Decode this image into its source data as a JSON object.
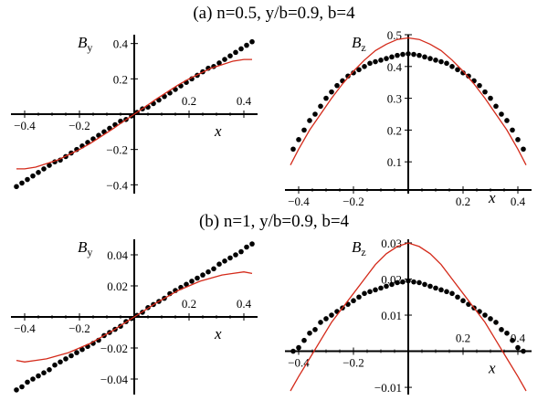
{
  "colors": {
    "model_line": "#d42a1a",
    "data_points": "#000000",
    "axis": "#000000"
  },
  "titles": [
    "(a)  n=0.5,  y/b=0.9,  b=4",
    "(b)  n=1,  y/b=0.9,  b=4"
  ],
  "chart_data": [
    {
      "type": "scatter",
      "panel": "a-left",
      "xlabel": "x",
      "ylabel": "B",
      "ylabel_sub": "y",
      "xlim": [
        -0.45,
        0.45
      ],
      "ylim": [
        -0.45,
        0.45
      ],
      "xticks": [
        -0.4,
        -0.2,
        0.2,
        0.4
      ],
      "xtick_labels": [
        "−0.4",
        "−0.2",
        "0.2",
        "0.4"
      ],
      "yticks": [
        -0.4,
        -0.2,
        0.2,
        0.4
      ],
      "ytick_labels": [
        "−0.4",
        "−0.2",
        "0.2",
        "0.4"
      ],
      "series": [
        {
          "kind": "points",
          "x": [
            -0.43,
            -0.41,
            -0.39,
            -0.37,
            -0.35,
            -0.33,
            -0.31,
            -0.29,
            -0.27,
            -0.25,
            -0.23,
            -0.21,
            -0.19,
            -0.17,
            -0.15,
            -0.13,
            -0.11,
            -0.09,
            -0.07,
            -0.05,
            -0.03,
            -0.01,
            0.01,
            0.03,
            0.05,
            0.07,
            0.09,
            0.11,
            0.13,
            0.15,
            0.17,
            0.19,
            0.21,
            0.23,
            0.25,
            0.27,
            0.29,
            0.31,
            0.33,
            0.35,
            0.37,
            0.39,
            0.41,
            0.43
          ],
          "y": [
            -0.41,
            -0.39,
            -0.37,
            -0.35,
            -0.33,
            -0.31,
            -0.29,
            -0.27,
            -0.26,
            -0.24,
            -0.22,
            -0.2,
            -0.18,
            -0.16,
            -0.14,
            -0.12,
            -0.1,
            -0.08,
            -0.06,
            -0.04,
            -0.03,
            -0.01,
            0.01,
            0.03,
            0.04,
            0.06,
            0.08,
            0.1,
            0.12,
            0.14,
            0.16,
            0.18,
            0.2,
            0.22,
            0.24,
            0.26,
            0.27,
            0.29,
            0.31,
            0.33,
            0.35,
            0.37,
            0.39,
            0.41
          ]
        },
        {
          "kind": "line",
          "x": [
            -0.43,
            -0.4,
            -0.36,
            -0.32,
            -0.28,
            -0.24,
            -0.2,
            -0.16,
            -0.12,
            -0.08,
            -0.04,
            0,
            0.04,
            0.08,
            0.12,
            0.16,
            0.2,
            0.24,
            0.28,
            0.32,
            0.36,
            0.4,
            0.43
          ],
          "y": [
            -0.31,
            -0.31,
            -0.3,
            -0.28,
            -0.26,
            -0.23,
            -0.2,
            -0.165,
            -0.125,
            -0.085,
            -0.042,
            0,
            0.042,
            0.085,
            0.125,
            0.165,
            0.2,
            0.23,
            0.26,
            0.28,
            0.3,
            0.31,
            0.31
          ]
        }
      ]
    },
    {
      "type": "scatter",
      "panel": "a-right",
      "xlabel": "x",
      "ylabel": "B",
      "ylabel_sub": "z",
      "xlim": [
        -0.45,
        0.45
      ],
      "ylim": [
        0.0,
        0.5
      ],
      "xticks": [
        -0.4,
        -0.2,
        0.2,
        0.4
      ],
      "xtick_labels": [
        "−0.4",
        "−0.2",
        "0.2",
        "0.4"
      ],
      "yticks": [
        0.1,
        0.2,
        0.3,
        0.4,
        0.5
      ],
      "ytick_labels": [
        "0.1",
        "0.2",
        "0.3",
        "0.4",
        "0.5"
      ],
      "series": [
        {
          "kind": "points",
          "x": [
            -0.42,
            -0.4,
            -0.38,
            -0.36,
            -0.34,
            -0.32,
            -0.3,
            -0.28,
            -0.26,
            -0.24,
            -0.22,
            -0.2,
            -0.18,
            -0.16,
            -0.14,
            -0.12,
            -0.1,
            -0.08,
            -0.06,
            -0.04,
            -0.02,
            0,
            0.02,
            0.04,
            0.06,
            0.08,
            0.1,
            0.12,
            0.14,
            0.16,
            0.18,
            0.2,
            0.22,
            0.24,
            0.26,
            0.28,
            0.3,
            0.32,
            0.34,
            0.36,
            0.38,
            0.4,
            0.42
          ],
          "y": [
            0.14,
            0.17,
            0.2,
            0.23,
            0.25,
            0.275,
            0.3,
            0.32,
            0.34,
            0.355,
            0.37,
            0.38,
            0.39,
            0.4,
            0.41,
            0.415,
            0.42,
            0.425,
            0.43,
            0.435,
            0.438,
            0.44,
            0.438,
            0.435,
            0.43,
            0.425,
            0.42,
            0.415,
            0.41,
            0.4,
            0.39,
            0.38,
            0.37,
            0.355,
            0.34,
            0.32,
            0.3,
            0.275,
            0.25,
            0.23,
            0.2,
            0.17,
            0.14
          ]
        },
        {
          "kind": "line",
          "x": [
            -0.43,
            -0.4,
            -0.36,
            -0.32,
            -0.28,
            -0.24,
            -0.2,
            -0.16,
            -0.12,
            -0.08,
            -0.04,
            0,
            0.04,
            0.08,
            0.12,
            0.16,
            0.2,
            0.24,
            0.28,
            0.32,
            0.36,
            0.4,
            0.43
          ],
          "y": [
            0.09,
            0.14,
            0.2,
            0.25,
            0.3,
            0.345,
            0.385,
            0.42,
            0.45,
            0.47,
            0.485,
            0.49,
            0.485,
            0.47,
            0.45,
            0.42,
            0.385,
            0.345,
            0.3,
            0.25,
            0.2,
            0.14,
            0.09
          ]
        }
      ]
    },
    {
      "type": "scatter",
      "panel": "b-left",
      "xlabel": "x",
      "ylabel": "B",
      "ylabel_sub": "y",
      "xlim": [
        -0.45,
        0.45
      ],
      "ylim": [
        -0.05,
        0.05
      ],
      "xticks": [
        -0.4,
        -0.2,
        0.2,
        0.4
      ],
      "xtick_labels": [
        "−0.4",
        "−0.2",
        "0.2",
        "0.4"
      ],
      "yticks": [
        -0.04,
        -0.02,
        0.02,
        0.04
      ],
      "ytick_labels": [
        "−0.04",
        "−0.02",
        "0.02",
        "0.04"
      ],
      "series": [
        {
          "kind": "points",
          "x": [
            -0.43,
            -0.41,
            -0.39,
            -0.37,
            -0.35,
            -0.33,
            -0.31,
            -0.29,
            -0.27,
            -0.25,
            -0.23,
            -0.21,
            -0.19,
            -0.17,
            -0.15,
            -0.13,
            -0.11,
            -0.09,
            -0.07,
            -0.05,
            -0.03,
            -0.01,
            0.01,
            0.03,
            0.05,
            0.07,
            0.09,
            0.11,
            0.13,
            0.15,
            0.17,
            0.19,
            0.21,
            0.23,
            0.25,
            0.27,
            0.29,
            0.31,
            0.33,
            0.35,
            0.37,
            0.39,
            0.41,
            0.43
          ],
          "y": [
            -0.047,
            -0.045,
            -0.042,
            -0.04,
            -0.038,
            -0.036,
            -0.034,
            -0.031,
            -0.029,
            -0.027,
            -0.025,
            -0.023,
            -0.021,
            -0.019,
            -0.017,
            -0.015,
            -0.012,
            -0.01,
            -0.008,
            -0.006,
            -0.003,
            -0.001,
            0.001,
            0.003,
            0.006,
            0.008,
            0.01,
            0.012,
            0.015,
            0.017,
            0.019,
            0.021,
            0.023,
            0.025,
            0.027,
            0.029,
            0.031,
            0.034,
            0.036,
            0.038,
            0.04,
            0.042,
            0.045,
            0.047
          ]
        },
        {
          "kind": "line",
          "x": [
            -0.43,
            -0.4,
            -0.36,
            -0.32,
            -0.28,
            -0.24,
            -0.2,
            -0.16,
            -0.12,
            -0.08,
            -0.04,
            0,
            0.04,
            0.08,
            0.12,
            0.16,
            0.2,
            0.24,
            0.28,
            0.32,
            0.36,
            0.4,
            0.43
          ],
          "y": [
            -0.028,
            -0.029,
            -0.028,
            -0.027,
            -0.025,
            -0.023,
            -0.02,
            -0.017,
            -0.013,
            -0.009,
            -0.0045,
            0,
            0.0045,
            0.009,
            0.013,
            0.017,
            0.02,
            0.023,
            0.025,
            0.027,
            0.028,
            0.029,
            0.028
          ]
        }
      ]
    },
    {
      "type": "scatter",
      "panel": "b-right",
      "xlabel": "x",
      "ylabel": "B",
      "ylabel_sub": "z",
      "xlim": [
        -0.45,
        0.45
      ],
      "ylim": [
        -0.012,
        0.031
      ],
      "xticks": [
        -0.4,
        -0.2,
        0.2,
        0.4
      ],
      "xtick_labels": [
        "−0.4",
        "−0.2",
        "0.2",
        "0.4"
      ],
      "yticks": [
        -0.01,
        0.01,
        0.02,
        0.03
      ],
      "ytick_labels": [
        "−0.01",
        "0.01",
        "0.02",
        "0.03"
      ],
      "series": [
        {
          "kind": "points",
          "x": [
            -0.42,
            -0.4,
            -0.38,
            -0.36,
            -0.34,
            -0.32,
            -0.3,
            -0.28,
            -0.26,
            -0.24,
            -0.22,
            -0.2,
            -0.18,
            -0.16,
            -0.14,
            -0.12,
            -0.1,
            -0.08,
            -0.06,
            -0.04,
            -0.02,
            0,
            0.02,
            0.04,
            0.06,
            0.08,
            0.1,
            0.12,
            0.14,
            0.16,
            0.18,
            0.2,
            0.22,
            0.24,
            0.26,
            0.28,
            0.3,
            0.32,
            0.34,
            0.36,
            0.38,
            0.4,
            0.42
          ],
          "y": [
            0.0,
            0.001,
            0.003,
            0.005,
            0.006,
            0.008,
            0.009,
            0.01,
            0.011,
            0.012,
            0.013,
            0.014,
            0.015,
            0.016,
            0.0165,
            0.017,
            0.0175,
            0.018,
            0.0185,
            0.019,
            0.0192,
            0.0195,
            0.0192,
            0.019,
            0.0185,
            0.018,
            0.0175,
            0.017,
            0.0165,
            0.016,
            0.015,
            0.014,
            0.013,
            0.012,
            0.011,
            0.01,
            0.009,
            0.008,
            0.006,
            0.005,
            0.003,
            0.001,
            0.0
          ]
        },
        {
          "kind": "line",
          "x": [
            -0.43,
            -0.4,
            -0.36,
            -0.32,
            -0.28,
            -0.24,
            -0.2,
            -0.16,
            -0.12,
            -0.08,
            -0.04,
            0,
            0.04,
            0.08,
            0.12,
            0.16,
            0.2,
            0.24,
            0.28,
            0.32,
            0.36,
            0.4,
            0.43
          ],
          "y": [
            -0.011,
            -0.007,
            -0.002,
            0.003,
            0.008,
            0.012,
            0.016,
            0.02,
            0.024,
            0.027,
            0.029,
            0.03,
            0.029,
            0.027,
            0.024,
            0.02,
            0.016,
            0.012,
            0.008,
            0.003,
            -0.002,
            -0.007,
            -0.011
          ]
        }
      ]
    }
  ]
}
